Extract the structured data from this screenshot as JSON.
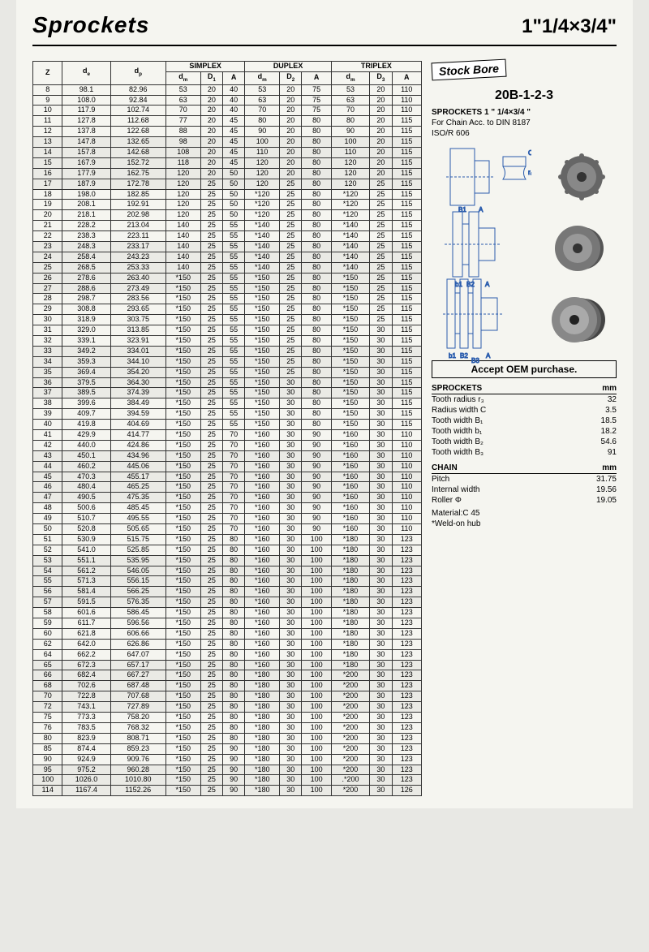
{
  "header": {
    "title": "Sprockets",
    "size": "1\"1/4×3/4\""
  },
  "table": {
    "groupHeaders": [
      "SIMPLEX",
      "DUPLEX",
      "TRIPLEX"
    ],
    "cols": [
      "Z",
      "d_e",
      "d_p",
      "d_m",
      "D_1",
      "A",
      "d_m",
      "D_2",
      "A",
      "d_m",
      "D_3",
      "A"
    ],
    "rows": [
      [
        "8",
        "98.1",
        "82.96",
        "53",
        "20",
        "40",
        "53",
        "20",
        "75",
        "53",
        "20",
        "110"
      ],
      [
        "9",
        "108.0",
        "92.84",
        "63",
        "20",
        "40",
        "63",
        "20",
        "75",
        "63",
        "20",
        "110"
      ],
      [
        "10",
        "117.9",
        "102.74",
        "70",
        "20",
        "40",
        "70",
        "20",
        "75",
        "70",
        "20",
        "110"
      ],
      [
        "11",
        "127.8",
        "112.68",
        "77",
        "20",
        "45",
        "80",
        "20",
        "80",
        "80",
        "20",
        "115"
      ],
      [
        "12",
        "137.8",
        "122.68",
        "88",
        "20",
        "45",
        "90",
        "20",
        "80",
        "90",
        "20",
        "115"
      ],
      [
        "13",
        "147.8",
        "132.65",
        "98",
        "20",
        "45",
        "100",
        "20",
        "80",
        "100",
        "20",
        "115"
      ],
      [
        "14",
        "157.8",
        "142.68",
        "108",
        "20",
        "45",
        "110",
        "20",
        "80",
        "110",
        "20",
        "115"
      ],
      [
        "15",
        "167.9",
        "152.72",
        "118",
        "20",
        "45",
        "120",
        "20",
        "80",
        "120",
        "20",
        "115"
      ],
      [
        "16",
        "177.9",
        "162.75",
        "120",
        "20",
        "50",
        "120",
        "20",
        "80",
        "120",
        "20",
        "115"
      ],
      [
        "17",
        "187.9",
        "172.78",
        "120",
        "25",
        "50",
        "120",
        "25",
        "80",
        "120",
        "25",
        "115"
      ],
      [
        "18",
        "198.0",
        "182.85",
        "120",
        "25",
        "50",
        "*120",
        "25",
        "80",
        "*120",
        "25",
        "115"
      ],
      [
        "19",
        "208.1",
        "192.91",
        "120",
        "25",
        "50",
        "*120",
        "25",
        "80",
        "*120",
        "25",
        "115"
      ],
      [
        "20",
        "218.1",
        "202.98",
        "120",
        "25",
        "50",
        "*120",
        "25",
        "80",
        "*120",
        "25",
        "115"
      ],
      [
        "21",
        "228.2",
        "213.04",
        "140",
        "25",
        "55",
        "*140",
        "25",
        "80",
        "*140",
        "25",
        "115"
      ],
      [
        "22",
        "238.3",
        "223.11",
        "140",
        "25",
        "55",
        "*140",
        "25",
        "80",
        "*140",
        "25",
        "115"
      ],
      [
        "23",
        "248.3",
        "233.17",
        "140",
        "25",
        "55",
        "*140",
        "25",
        "80",
        "*140",
        "25",
        "115"
      ],
      [
        "24",
        "258.4",
        "243.23",
        "140",
        "25",
        "55",
        "*140",
        "25",
        "80",
        "*140",
        "25",
        "115"
      ],
      [
        "25",
        "268.5",
        "253.33",
        "140",
        "25",
        "55",
        "*140",
        "25",
        "80",
        "*140",
        "25",
        "115"
      ],
      [
        "26",
        "278.6",
        "263.40",
        "*150",
        "25",
        "55",
        "*150",
        "25",
        "80",
        "*150",
        "25",
        "115"
      ],
      [
        "27",
        "288.6",
        "273.49",
        "*150",
        "25",
        "55",
        "*150",
        "25",
        "80",
        "*150",
        "25",
        "115"
      ],
      [
        "28",
        "298.7",
        "283.56",
        "*150",
        "25",
        "55",
        "*150",
        "25",
        "80",
        "*150",
        "25",
        "115"
      ],
      [
        "29",
        "308.8",
        "293.65",
        "*150",
        "25",
        "55",
        "*150",
        "25",
        "80",
        "*150",
        "25",
        "115"
      ],
      [
        "30",
        "318.9",
        "303.75",
        "*150",
        "25",
        "55",
        "*150",
        "25",
        "80",
        "*150",
        "25",
        "115"
      ],
      [
        "31",
        "329.0",
        "313.85",
        "*150",
        "25",
        "55",
        "*150",
        "25",
        "80",
        "*150",
        "30",
        "115"
      ],
      [
        "32",
        "339.1",
        "323.91",
        "*150",
        "25",
        "55",
        "*150",
        "25",
        "80",
        "*150",
        "30",
        "115"
      ],
      [
        "33",
        "349.2",
        "334.01",
        "*150",
        "25",
        "55",
        "*150",
        "25",
        "80",
        "*150",
        "30",
        "115"
      ],
      [
        "34",
        "359.3",
        "344.10",
        "*150",
        "25",
        "55",
        "*150",
        "25",
        "80",
        "*150",
        "30",
        "115"
      ],
      [
        "35",
        "369.4",
        "354.20",
        "*150",
        "25",
        "55",
        "*150",
        "25",
        "80",
        "*150",
        "30",
        "115"
      ],
      [
        "36",
        "379.5",
        "364.30",
        "*150",
        "25",
        "55",
        "*150",
        "30",
        "80",
        "*150",
        "30",
        "115"
      ],
      [
        "37",
        "389.5",
        "374.39",
        "*150",
        "25",
        "55",
        "*150",
        "30",
        "80",
        "*150",
        "30",
        "115"
      ],
      [
        "38",
        "399.6",
        "384.49",
        "*150",
        "25",
        "55",
        "*150",
        "30",
        "80",
        "*150",
        "30",
        "115"
      ],
      [
        "39",
        "409.7",
        "394.59",
        "*150",
        "25",
        "55",
        "*150",
        "30",
        "80",
        "*150",
        "30",
        "115"
      ],
      [
        "40",
        "419.8",
        "404.69",
        "*150",
        "25",
        "55",
        "*150",
        "30",
        "80",
        "*150",
        "30",
        "115"
      ],
      [
        "41",
        "429.9",
        "414.77",
        "*150",
        "25",
        "70",
        "*160",
        "30",
        "90",
        "*160",
        "30",
        "110"
      ],
      [
        "42",
        "440.0",
        "424.86",
        "*150",
        "25",
        "70",
        "*160",
        "30",
        "90",
        "*160",
        "30",
        "110"
      ],
      [
        "43",
        "450.1",
        "434.96",
        "*150",
        "25",
        "70",
        "*160",
        "30",
        "90",
        "*160",
        "30",
        "110"
      ],
      [
        "44",
        "460.2",
        "445.06",
        "*150",
        "25",
        "70",
        "*160",
        "30",
        "90",
        "*160",
        "30",
        "110"
      ],
      [
        "45",
        "470.3",
        "455.17",
        "*150",
        "25",
        "70",
        "*160",
        "30",
        "90",
        "*160",
        "30",
        "110"
      ],
      [
        "46",
        "480.4",
        "465.25",
        "*150",
        "25",
        "70",
        "*160",
        "30",
        "90",
        "*160",
        "30",
        "110"
      ],
      [
        "47",
        "490.5",
        "475.35",
        "*150",
        "25",
        "70",
        "*160",
        "30",
        "90",
        "*160",
        "30",
        "110"
      ],
      [
        "48",
        "500.6",
        "485.45",
        "*150",
        "25",
        "70",
        "*160",
        "30",
        "90",
        "*160",
        "30",
        "110"
      ],
      [
        "49",
        "510.7",
        "495.55",
        "*150",
        "25",
        "70",
        "*160",
        "30",
        "90",
        "*160",
        "30",
        "110"
      ],
      [
        "50",
        "520.8",
        "505.65",
        "*150",
        "25",
        "70",
        "*160",
        "30",
        "90",
        "*160",
        "30",
        "110"
      ],
      [
        "51",
        "530.9",
        "515.75",
        "*150",
        "25",
        "80",
        "*160",
        "30",
        "100",
        "*180",
        "30",
        "123"
      ],
      [
        "52",
        "541.0",
        "525.85",
        "*150",
        "25",
        "80",
        "*160",
        "30",
        "100",
        "*180",
        "30",
        "123"
      ],
      [
        "53",
        "551.1",
        "535.95",
        "*150",
        "25",
        "80",
        "*160",
        "30",
        "100",
        "*180",
        "30",
        "123"
      ],
      [
        "54",
        "561.2",
        "546.05",
        "*150",
        "25",
        "80",
        "*160",
        "30",
        "100",
        "*180",
        "30",
        "123"
      ],
      [
        "55",
        "571.3",
        "556.15",
        "*150",
        "25",
        "80",
        "*160",
        "30",
        "100",
        "*180",
        "30",
        "123"
      ],
      [
        "56",
        "581.4",
        "566.25",
        "*150",
        "25",
        "80",
        "*160",
        "30",
        "100",
        "*180",
        "30",
        "123"
      ],
      [
        "57",
        "591.5",
        "576.35",
        "*150",
        "25",
        "80",
        "*160",
        "30",
        "100",
        "*180",
        "30",
        "123"
      ],
      [
        "58",
        "601.6",
        "586.45",
        "*150",
        "25",
        "80",
        "*160",
        "30",
        "100",
        "*180",
        "30",
        "123"
      ],
      [
        "59",
        "611.7",
        "596.56",
        "*150",
        "25",
        "80",
        "*160",
        "30",
        "100",
        "*180",
        "30",
        "123"
      ],
      [
        "60",
        "621.8",
        "606.66",
        "*150",
        "25",
        "80",
        "*160",
        "30",
        "100",
        "*180",
        "30",
        "123"
      ],
      [
        "62",
        "642.0",
        "626.86",
        "*150",
        "25",
        "80",
        "*160",
        "30",
        "100",
        "*180",
        "30",
        "123"
      ],
      [
        "64",
        "662.2",
        "647.07",
        "*150",
        "25",
        "80",
        "*160",
        "30",
        "100",
        "*180",
        "30",
        "123"
      ],
      [
        "65",
        "672.3",
        "657.17",
        "*150",
        "25",
        "80",
        "*160",
        "30",
        "100",
        "*180",
        "30",
        "123"
      ],
      [
        "66",
        "682.4",
        "667.27",
        "*150",
        "25",
        "80",
        "*180",
        "30",
        "100",
        "*200",
        "30",
        "123"
      ],
      [
        "68",
        "702.6",
        "687.48",
        "*150",
        "25",
        "80",
        "*180",
        "30",
        "100",
        "*200",
        "30",
        "123"
      ],
      [
        "70",
        "722.8",
        "707.68",
        "*150",
        "25",
        "80",
        "*180",
        "30",
        "100",
        "*200",
        "30",
        "123"
      ],
      [
        "72",
        "743.1",
        "727.89",
        "*150",
        "25",
        "80",
        "*180",
        "30",
        "100",
        "*200",
        "30",
        "123"
      ],
      [
        "75",
        "773.3",
        "758.20",
        "*150",
        "25",
        "80",
        "*180",
        "30",
        "100",
        "*200",
        "30",
        "123"
      ],
      [
        "76",
        "783.5",
        "768.32",
        "*150",
        "25",
        "80",
        "*180",
        "30",
        "100",
        "*200",
        "30",
        "123"
      ],
      [
        "80",
        "823.9",
        "808.71",
        "*150",
        "25",
        "80",
        "*180",
        "30",
        "100",
        "*200",
        "30",
        "123"
      ],
      [
        "85",
        "874.4",
        "859.23",
        "*150",
        "25",
        "90",
        "*180",
        "30",
        "100",
        "*200",
        "30",
        "123"
      ],
      [
        "90",
        "924.9",
        "909.76",
        "*150",
        "25",
        "90",
        "*180",
        "30",
        "100",
        "*200",
        "30",
        "123"
      ],
      [
        "95",
        "975.2",
        "960.28",
        "*150",
        "25",
        "90",
        "*180",
        "30",
        "100",
        "*200",
        "30",
        "123"
      ],
      [
        "100",
        "1026.0",
        "1010.80",
        "*150",
        "25",
        "90",
        "*180",
        "30",
        "100",
        ".*200",
        "30",
        "123"
      ],
      [
        "114",
        "1167.4",
        "1152.26",
        "*150",
        "25",
        "90",
        "*180",
        "30",
        "100",
        "*200",
        "30",
        "126"
      ]
    ],
    "shadeGroups": [
      [
        5,
        9
      ],
      [
        15,
        19
      ],
      [
        25,
        29
      ],
      [
        35,
        39
      ],
      [
        45,
        49
      ],
      [
        55,
        59
      ],
      [
        65,
        69
      ]
    ]
  },
  "side": {
    "stockBore": "Stock Bore",
    "code": "20B-1-2-3",
    "specTitle": "SPROCKETS 1 \" 1/4×3/4 \"",
    "spec1": "For Chain  Acc. to  DIN 8187",
    "spec2": "ISO/R 606",
    "oem": "Accept OEM purchase.",
    "sprocketsHdr": "SPROCKETS",
    "mm": "mm",
    "sprocketDims": [
      [
        "Tooth radius r₃",
        "32"
      ],
      [
        "Radius width C",
        "3.5"
      ],
      [
        "Tooth width B₁",
        "18.5"
      ],
      [
        "Tooth width b₁",
        "18.2"
      ],
      [
        "Tooth width B₂",
        "54.6"
      ],
      [
        "Tooth width B₃",
        "91"
      ]
    ],
    "chainHdr": "CHAIN",
    "chainDims": [
      [
        "Pitch",
        "31.75"
      ],
      [
        "Internal width",
        "19.56"
      ],
      [
        "Roller Φ",
        "19.05"
      ]
    ],
    "material": "Material:C 45",
    "weld": "*Weld-on hub"
  }
}
